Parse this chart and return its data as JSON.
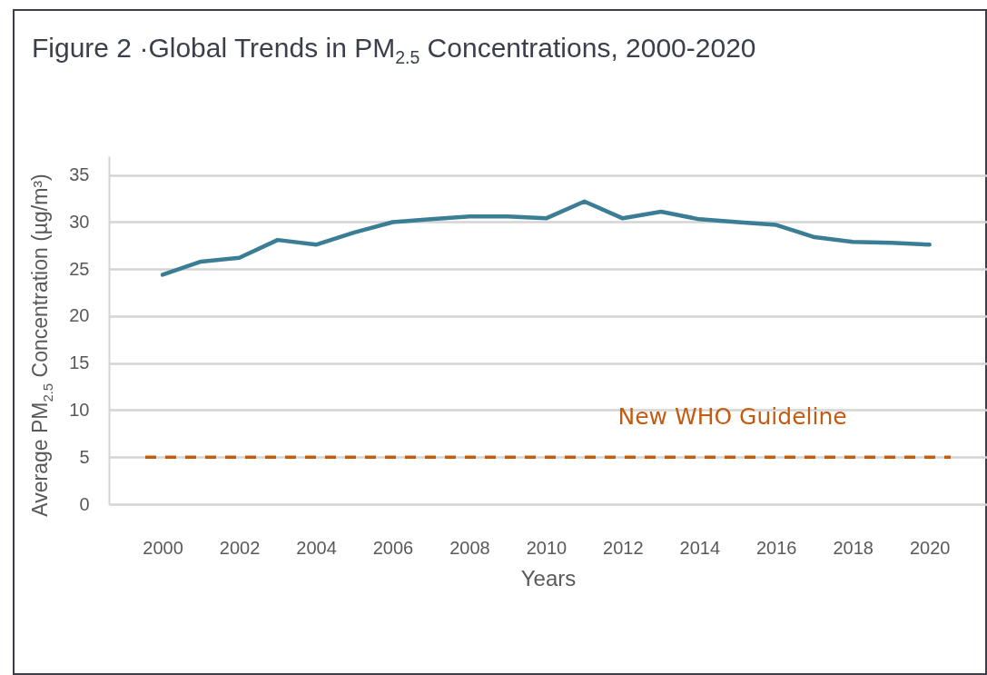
{
  "chart_data": {
    "type": "line",
    "title": "Figure 2 ·Global Trends in PM$_{2.5}$ Concentrations, 2000-2020",
    "xlabel": "Years",
    "ylabel": "Average PM$_{2.5}$ Concentration (µg/m³)",
    "x": [
      2000,
      2001,
      2002,
      2003,
      2004,
      2005,
      2006,
      2007,
      2008,
      2009,
      2010,
      2011,
      2012,
      2013,
      2014,
      2015,
      2016,
      2017,
      2018,
      2019,
      2020
    ],
    "series": [
      {
        "color": "#3b7d95",
        "values": [
          24.4,
          25.8,
          26.2,
          28.1,
          27.6,
          28.9,
          30.0,
          30.3,
          30.6,
          30.6,
          30.4,
          32.2,
          30.4,
          31.1,
          30.3,
          30.0,
          29.7,
          28.4,
          27.9,
          27.8,
          27.6
        ]
      }
    ],
    "xlim": [
      1998.6,
      2021.5
    ],
    "xticks": [
      2000,
      2002,
      2004,
      2006,
      2008,
      2010,
      2012,
      2014,
      2016,
      2018,
      2020
    ],
    "ylim": [
      0,
      37
    ],
    "yticks": [
      0,
      5,
      10,
      15,
      20,
      25,
      30,
      35
    ],
    "grid": "y",
    "ref_lines": [
      {
        "axis": "y",
        "value": 5,
        "label": "New WHO Guideline",
        "color": "#c55a11",
        "line_style": "dashed"
      }
    ]
  }
}
